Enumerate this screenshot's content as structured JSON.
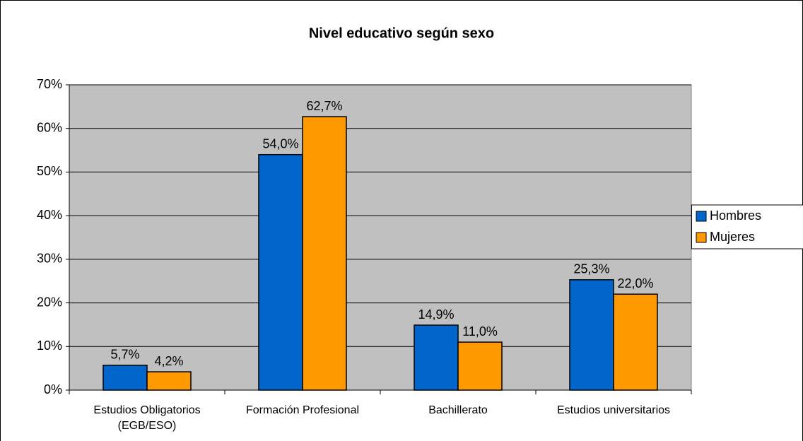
{
  "chart_data": {
    "type": "bar",
    "title": "Nivel educativo según sexo",
    "categories": [
      "Estudios Obligatorios (EGB/ESO)",
      "Formación Profesional",
      "Bachillerato",
      "Estudios universitarios"
    ],
    "series": [
      {
        "name": "Hombres",
        "color": "#0066cc",
        "values": [
          5.7,
          54.0,
          14.9,
          25.3
        ],
        "value_labels": [
          "5,7%",
          "54,0%",
          "14,9%",
          "25,3%"
        ]
      },
      {
        "name": "Mujeres",
        "color": "#ff9900",
        "values": [
          4.2,
          62.7,
          11.0,
          22.0
        ],
        "value_labels": [
          "4,2%",
          "62,7%",
          "11,0%",
          "22,0%"
        ]
      }
    ],
    "ylim": [
      0,
      70
    ],
    "yticks": [
      {
        "value": 0,
        "label": "0%"
      },
      {
        "value": 10,
        "label": "10%"
      },
      {
        "value": 20,
        "label": "20%"
      },
      {
        "value": 30,
        "label": "30%"
      },
      {
        "value": 40,
        "label": "40%"
      },
      {
        "value": 50,
        "label": "50%"
      },
      {
        "value": 60,
        "label": "60%"
      },
      {
        "value": 70,
        "label": "70%"
      }
    ],
    "grid": true,
    "legend": "right"
  }
}
